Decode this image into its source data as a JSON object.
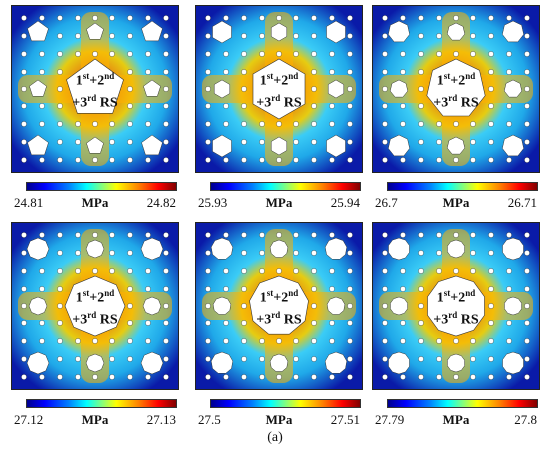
{
  "panels": [
    {
      "holes": "pentagon",
      "label_line1_a": "1",
      "label_sup_a": "st",
      "label_line1_b": "+2",
      "label_sup_b": "nd",
      "label_line2_a": "+3",
      "label_sup_c": "rd",
      "label_line2_b": " RS",
      "cb_min": "24.81",
      "cb_unit": "MPa",
      "cb_max": "24.82"
    },
    {
      "holes": "hexagon",
      "label_line1_a": "1",
      "label_sup_a": "st",
      "label_line1_b": "+2",
      "label_sup_b": "nd",
      "label_line2_a": "+3",
      "label_sup_c": "rd",
      "label_line2_b": " RS",
      "cb_min": "25.93",
      "cb_unit": "MPa",
      "cb_max": "25.94"
    },
    {
      "holes": "heptagon",
      "label_line1_a": "1",
      "label_sup_a": "st",
      "label_line1_b": "+2",
      "label_sup_b": "nd",
      "label_line2_a": "+3",
      "label_sup_c": "rd",
      "label_line2_b": " RS",
      "cb_min": "26.7",
      "cb_unit": "MPa",
      "cb_max": "26.71"
    },
    {
      "holes": "octagon",
      "label_line1_a": "1",
      "label_sup_a": "st",
      "label_line1_b": "+2",
      "label_sup_b": "nd",
      "label_line2_a": "+3",
      "label_sup_c": "rd",
      "label_line2_b": " RS",
      "cb_min": "27.12",
      "cb_unit": "MPa",
      "cb_max": "27.13"
    },
    {
      "holes": "nonagon",
      "label_line1_a": "1",
      "label_sup_a": "st",
      "label_line1_b": "+2",
      "label_sup_b": "nd",
      "label_line2_a": "+3",
      "label_sup_c": "rd",
      "label_line2_b": " RS",
      "cb_min": "27.5",
      "cb_unit": "MPa",
      "cb_max": "27.51"
    },
    {
      "holes": "decagon",
      "label_line1_a": "1",
      "label_sup_a": "st",
      "label_line1_b": "+2",
      "label_sup_b": "nd",
      "label_line2_a": "+3",
      "label_sup_c": "rd",
      "label_line2_b": " RS",
      "cb_min": "27.79",
      "cb_unit": "MPa",
      "cb_max": "27.8"
    }
  ],
  "caption": "(a)",
  "colors": {
    "field_low": "#0a1aa8",
    "field_mid": "#22b8f0",
    "field_high": "#ff2a00",
    "hole": "#ffffff"
  }
}
